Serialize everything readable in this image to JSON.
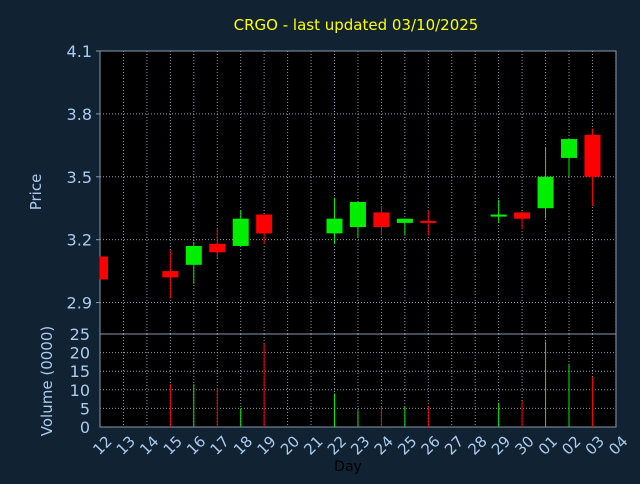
{
  "colors": {
    "background": "#112233",
    "panel": "#000000",
    "grid": "#8899aa",
    "axis_text": "#aaccee",
    "title": "#ffff00",
    "up": "#00ee00",
    "down": "#ff0000"
  },
  "chart_data": [
    {
      "type": "candlestick",
      "title": "CRGO - last updated 03/10/2025",
      "ylabel": "Price",
      "ylim": [
        2.75,
        4.1
      ],
      "yticks": [
        "2.9",
        "3.2",
        "3.5",
        "3.8",
        "4.1"
      ],
      "grid": true,
      "x": [
        "12",
        "13",
        "14",
        "15",
        "16",
        "17",
        "18",
        "19",
        "20",
        "21",
        "22",
        "23",
        "24",
        "25",
        "26",
        "27",
        "28",
        "29",
        "30",
        "01",
        "02",
        "03",
        "04"
      ],
      "candles": [
        {
          "day": "12",
          "open": 3.12,
          "close": 3.01,
          "high": 3.12,
          "low": 3.01
        },
        {
          "day": "15",
          "open": 3.05,
          "close": 3.02,
          "high": 3.15,
          "low": 2.92
        },
        {
          "day": "16",
          "open": 3.08,
          "close": 3.17,
          "high": 3.19,
          "low": 2.99
        },
        {
          "day": "17",
          "open": 3.18,
          "close": 3.14,
          "high": 3.25,
          "low": 3.11
        },
        {
          "day": "18",
          "open": 3.17,
          "close": 3.3,
          "high": 3.34,
          "low": 3.17
        },
        {
          "day": "19",
          "open": 3.32,
          "close": 3.23,
          "high": 3.32,
          "low": 3.18
        },
        {
          "day": "22",
          "open": 3.23,
          "close": 3.3,
          "high": 3.4,
          "low": 3.18
        },
        {
          "day": "23",
          "open": 3.26,
          "close": 3.38,
          "high": 3.38,
          "low": 3.21
        },
        {
          "day": "24",
          "open": 3.33,
          "close": 3.26,
          "high": 3.36,
          "low": 3.22
        },
        {
          "day": "25",
          "open": 3.28,
          "close": 3.3,
          "high": 3.3,
          "low": 3.22
        },
        {
          "day": "26",
          "open": 3.29,
          "close": 3.28,
          "high": 3.34,
          "low": 3.22
        },
        {
          "day": "29",
          "open": 3.31,
          "close": 3.32,
          "high": 3.39,
          "low": 3.28
        },
        {
          "day": "30",
          "open": 3.33,
          "close": 3.3,
          "high": 3.33,
          "low": 3.25
        },
        {
          "day": "01",
          "open": 3.35,
          "close": 3.5,
          "high": 3.64,
          "low": 3.3
        },
        {
          "day": "02",
          "open": 3.59,
          "close": 3.68,
          "high": 3.68,
          "low": 3.5
        },
        {
          "day": "03",
          "open": 3.7,
          "close": 3.5,
          "high": 3.73,
          "low": 3.36
        }
      ],
      "volume": {
        "ylabel": "Volume (0000)",
        "ylim": [
          0,
          25
        ],
        "yticks": [
          "0",
          "5",
          "10",
          "15",
          "20",
          "25"
        ],
        "bars": [
          {
            "day": "15",
            "value": 11.5
          },
          {
            "day": "16",
            "value": 11.5
          },
          {
            "day": "17",
            "value": 10.5
          },
          {
            "day": "18",
            "value": 5
          },
          {
            "day": "19",
            "value": 22.5
          },
          {
            "day": "22",
            "value": 9
          },
          {
            "day": "23",
            "value": 4.5
          },
          {
            "day": "24",
            "value": 5.5
          },
          {
            "day": "25",
            "value": 5.5
          },
          {
            "day": "26",
            "value": 5.5
          },
          {
            "day": "29",
            "value": 6.5
          },
          {
            "day": "30",
            "value": 7
          },
          {
            "day": "01",
            "value": 23
          },
          {
            "day": "02",
            "value": 17
          },
          {
            "day": "03",
            "value": 13.5
          }
        ]
      },
      "xlabel": "Day"
    }
  ]
}
